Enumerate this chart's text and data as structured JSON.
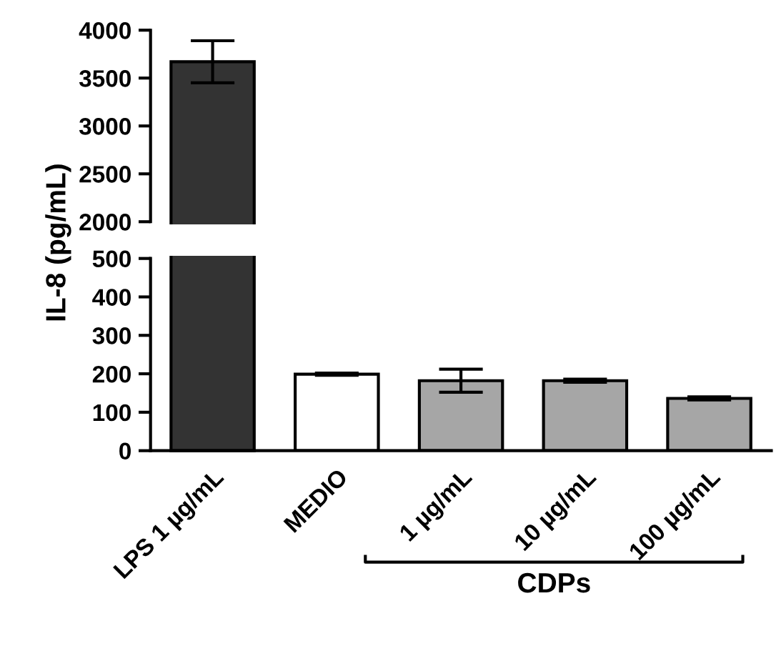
{
  "chart_data": [
    {
      "type": "bar",
      "ylabel": "IL-8 (pg/mL)",
      "categories": [
        null,
        null,
        null,
        null,
        null
      ],
      "values": [
        3670,
        null,
        null,
        null,
        null
      ],
      "errors": [
        220,
        null,
        null,
        null,
        null
      ],
      "colors": [
        "#333333",
        "#ffffff",
        "#a6a6a6",
        "#a6a6a6",
        "#a6a6a6"
      ],
      "ylim": [
        2000,
        4000
      ],
      "yticks": [
        2000,
        2500,
        3000,
        3500,
        4000
      ],
      "tick_labels": "y",
      "grid": false,
      "legend": false
    },
    {
      "type": "bar",
      "categories": [
        "LPS 1 µg/mL",
        "MEDIO",
        "1 µg/mL",
        "10 µg/mL",
        "100 µg/mL"
      ],
      "values": [
        null,
        199,
        182,
        182,
        136
      ],
      "errors": [
        null,
        3,
        30,
        4,
        4
      ],
      "colors": [
        "#333333",
        "#ffffff",
        "#a6a6a6",
        "#a6a6a6",
        "#a6a6a6"
      ],
      "ylim": [
        0,
        500
      ],
      "yticks": [
        0,
        100,
        200,
        300,
        400,
        500
      ],
      "grid": false,
      "legend": false,
      "annotations": [
        "CDPs"
      ]
    }
  ]
}
